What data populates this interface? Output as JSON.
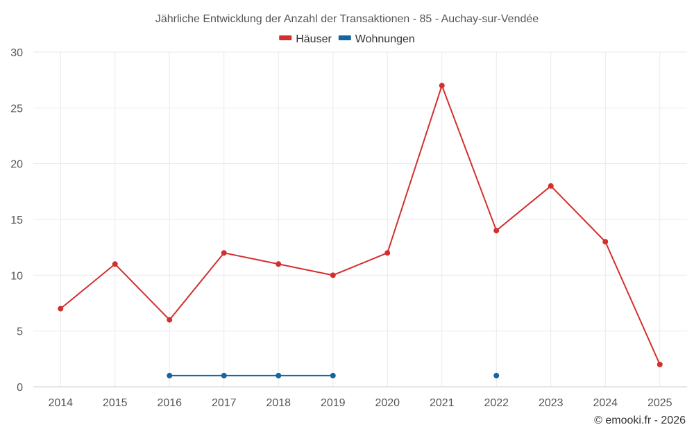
{
  "chart_data": {
    "type": "line",
    "title": "Jährliche Entwicklung der Anzahl der Transaktionen - 85 - Auchay-sur-Vendée",
    "categories": [
      "2014",
      "2015",
      "2016",
      "2017",
      "2018",
      "2019",
      "2020",
      "2021",
      "2022",
      "2023",
      "2024",
      "2025"
    ],
    "series": [
      {
        "name": "Häuser",
        "color": "#d32f2f",
        "values": [
          7,
          11,
          6,
          12,
          11,
          10,
          12,
          27,
          14,
          18,
          13,
          2
        ]
      },
      {
        "name": "Wohnungen",
        "color": "#1565a0",
        "values": [
          null,
          null,
          1,
          1,
          1,
          1,
          null,
          null,
          1,
          null,
          null,
          null
        ]
      }
    ],
    "ylim": [
      0,
      30
    ],
    "yticks": [
      "0",
      "5",
      "10",
      "15",
      "20",
      "25",
      "30"
    ],
    "grid": true,
    "legend_position": "top-center"
  },
  "credit": "© emooki.fr - 2026"
}
